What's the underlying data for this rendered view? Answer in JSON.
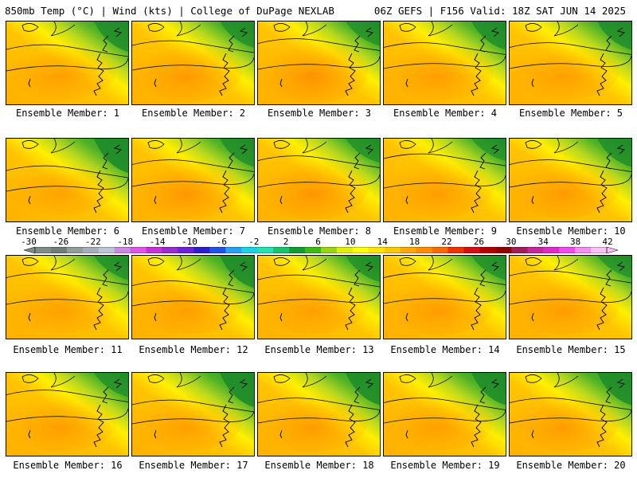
{
  "header": {
    "left_title": "850mb Temp (°C) | Wind (kts) | College of DuPage NEXLAB",
    "right_title": "06Z GEFS | F156 Valid: 18Z SAT JUN 14 2025"
  },
  "panels": [
    {
      "label": "Ensemble Member: 1",
      "green": 0.8,
      "cold_band": 0.35,
      "orange": 0.5
    },
    {
      "label": "Ensemble Member: 2",
      "green": 0.6,
      "cold_band": 0.3,
      "orange": 0.7
    },
    {
      "label": "Ensemble Member: 3",
      "green": 0.5,
      "cold_band": 0.25,
      "orange": 0.9
    },
    {
      "label": "Ensemble Member: 4",
      "green": 0.7,
      "cold_band": 0.2,
      "orange": 0.55
    },
    {
      "label": "Ensemble Member: 5",
      "green": 0.7,
      "cold_band": 0.2,
      "orange": 0.5
    },
    {
      "label": "Ensemble Member: 6",
      "green": 1.0,
      "cold_band": 0.55,
      "orange": 0.35
    },
    {
      "label": "Ensemble Member: 7",
      "green": 0.7,
      "cold_band": 0.25,
      "orange": 0.75
    },
    {
      "label": "Ensemble Member: 8",
      "green": 0.5,
      "cold_band": 0.3,
      "orange": 0.8
    },
    {
      "label": "Ensemble Member: 9",
      "green": 0.4,
      "cold_band": 0.35,
      "orange": 0.55
    },
    {
      "label": "Ensemble Member: 10",
      "green": 0.7,
      "cold_band": 0.3,
      "orange": 0.65
    },
    {
      "label": "Ensemble Member: 11",
      "green": 0.5,
      "cold_band": 0.3,
      "orange": 0.45
    },
    {
      "label": "Ensemble Member: 12",
      "green": 0.9,
      "cold_band": 0.4,
      "orange": 0.55
    },
    {
      "label": "Ensemble Member: 13",
      "green": 0.6,
      "cold_band": 0.3,
      "orange": 0.5
    },
    {
      "label": "Ensemble Member: 14",
      "green": 0.5,
      "cold_band": 0.25,
      "orange": 0.6
    },
    {
      "label": "Ensemble Member: 15",
      "green": 0.4,
      "cold_band": 0.3,
      "orange": 0.6
    },
    {
      "label": "Ensemble Member: 16",
      "green": 0.5,
      "cold_band": 0.3,
      "orange": 0.55
    },
    {
      "label": "Ensemble Member: 17",
      "green": 1.0,
      "cold_band": 0.45,
      "orange": 0.5
    },
    {
      "label": "Ensemble Member: 18",
      "green": 0.9,
      "cold_band": 0.4,
      "orange": 0.6
    },
    {
      "label": "Ensemble Member: 19",
      "green": 0.9,
      "cold_band": 0.4,
      "orange": 0.5
    },
    {
      "label": "Ensemble Member: 20",
      "green": 0.9,
      "cold_band": 0.4,
      "orange": 0.6
    }
  ],
  "colorbar": {
    "ticks": [
      "-30",
      "-26",
      "-22",
      "-18",
      "-14",
      "-10",
      "-6",
      "-2",
      "2",
      "6",
      "10",
      "14",
      "18",
      "22",
      "26",
      "30",
      "34",
      "38",
      "42"
    ],
    "colors": [
      "#7f8b86",
      "#6e7d77",
      "#929d97",
      "#a6aeb9",
      "#bbc6d4",
      "#cc88e2",
      "#dd55e6",
      "#c433d4",
      "#9c2acc",
      "#6a22d4",
      "#2a1fc8",
      "#1f55e6",
      "#2aa0f0",
      "#1fd0e8",
      "#2ae0b0",
      "#19c46a",
      "#139c2e",
      "#3dbb14",
      "#9bd415",
      "#e0f000",
      "#ffff00",
      "#ffe400",
      "#ffc800",
      "#ffa800",
      "#ff8c00",
      "#ff6a00",
      "#f03000",
      "#d41010",
      "#b20000",
      "#900000",
      "#a01e5a",
      "#c4279c",
      "#e02ac8",
      "#f04ae8",
      "#f58cf0",
      "#f9c0f6"
    ]
  }
}
